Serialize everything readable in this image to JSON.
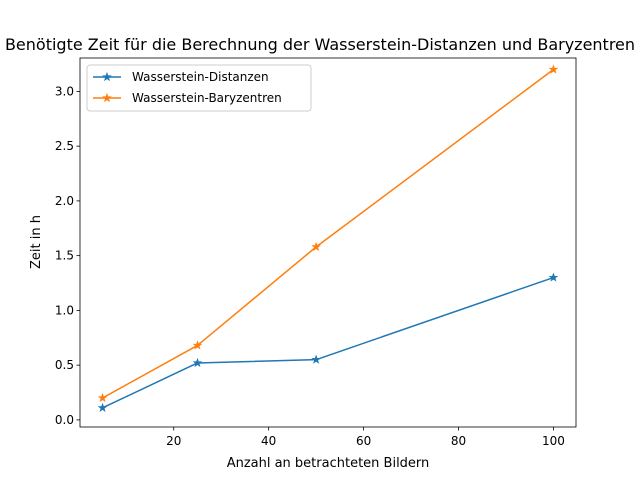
{
  "chart_data": {
    "type": "line",
    "title": "Benötigte Zeit für die Berechnung der Wasserstein-Distanzen und Baryzentren",
    "xlabel": "Anzahl an betrachteten Bildern",
    "ylabel": "Zeit in h",
    "xlim": [
      0.25,
      104.75
    ],
    "ylim": [
      -0.065,
      3.305
    ],
    "x_ticks": [
      20,
      40,
      60,
      80,
      100
    ],
    "x_tick_labels": [
      "20",
      "40",
      "60",
      "80",
      "100"
    ],
    "y_ticks": [
      0.0,
      0.5,
      1.0,
      1.5,
      2.0,
      2.5,
      3.0
    ],
    "y_tick_labels": [
      "0.0",
      "0.5",
      "1.0",
      "1.5",
      "2.0",
      "2.5",
      "3.0"
    ],
    "grid": false,
    "legend_position": "upper-left",
    "series": [
      {
        "name": "Wasserstein-Distanzen",
        "color": "#1f77b4",
        "marker": "star",
        "x": [
          5,
          25,
          50,
          100
        ],
        "y": [
          0.11,
          0.52,
          0.55,
          1.3
        ]
      },
      {
        "name": "Wasserstein-Baryzentren",
        "color": "#ff7f0e",
        "marker": "star",
        "x": [
          5,
          25,
          50,
          100
        ],
        "y": [
          0.2,
          0.68,
          1.58,
          3.2
        ]
      }
    ]
  }
}
